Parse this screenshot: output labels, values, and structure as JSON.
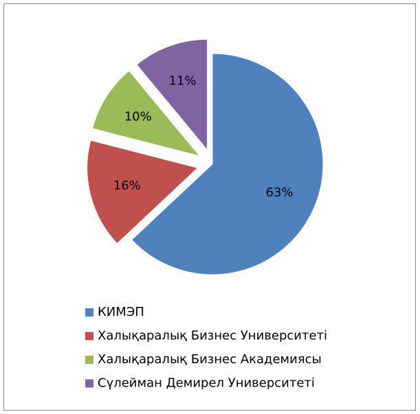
{
  "chart_data": {
    "type": "pie",
    "categories": [
      "КИМЭП",
      "Халықаралық Бизнес Университеті",
      "Халықаралық Бизнес Академиясы",
      "Сүлейман Демирел Университеті"
    ],
    "values": [
      63,
      16,
      10,
      11
    ],
    "value_labels": [
      "63%",
      "16%",
      "10%",
      "11%"
    ],
    "colors": [
      "#4f81bd",
      "#c0504d",
      "#9bbb59",
      "#8064a2"
    ],
    "exploded": [
      false,
      true,
      true,
      true
    ],
    "legend": "bottom"
  }
}
